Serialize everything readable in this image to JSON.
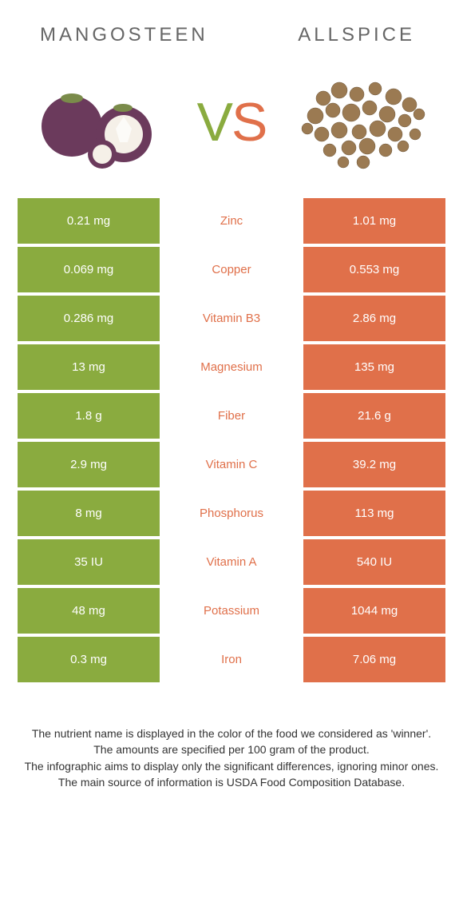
{
  "header": {
    "left_title": "Mangosteen",
    "right_title": "Allspice"
  },
  "vs": {
    "v": "V",
    "s": "S"
  },
  "colors": {
    "left_bg": "#8aab3f",
    "right_bg": "#e0704a",
    "mid_left": "#8aab3f",
    "mid_right": "#e0704a"
  },
  "rows": [
    {
      "left": "0.21 mg",
      "mid": "Zinc",
      "right": "1.01 mg",
      "winner": "right"
    },
    {
      "left": "0.069 mg",
      "mid": "Copper",
      "right": "0.553 mg",
      "winner": "right"
    },
    {
      "left": "0.286 mg",
      "mid": "Vitamin B3",
      "right": "2.86 mg",
      "winner": "right"
    },
    {
      "left": "13 mg",
      "mid": "Magnesium",
      "right": "135 mg",
      "winner": "right"
    },
    {
      "left": "1.8 g",
      "mid": "Fiber",
      "right": "21.6 g",
      "winner": "right"
    },
    {
      "left": "2.9 mg",
      "mid": "Vitamin C",
      "right": "39.2 mg",
      "winner": "right"
    },
    {
      "left": "8 mg",
      "mid": "Phosphorus",
      "right": "113 mg",
      "winner": "right"
    },
    {
      "left": "35 IU",
      "mid": "Vitamin A",
      "right": "540 IU",
      "winner": "right"
    },
    {
      "left": "48 mg",
      "mid": "Potassium",
      "right": "1044 mg",
      "winner": "right"
    },
    {
      "left": "0.3 mg",
      "mid": "Iron",
      "right": "7.06 mg",
      "winner": "right"
    }
  ],
  "footer": {
    "line1": "The nutrient name is displayed in the color of the food we considered as 'winner'.",
    "line2": "The amounts are specified per 100 gram of the product.",
    "line3": "The infographic aims to display only the significant differences, ignoring minor ones.",
    "line4": "The main source of information is USDA Food Composition Database."
  }
}
